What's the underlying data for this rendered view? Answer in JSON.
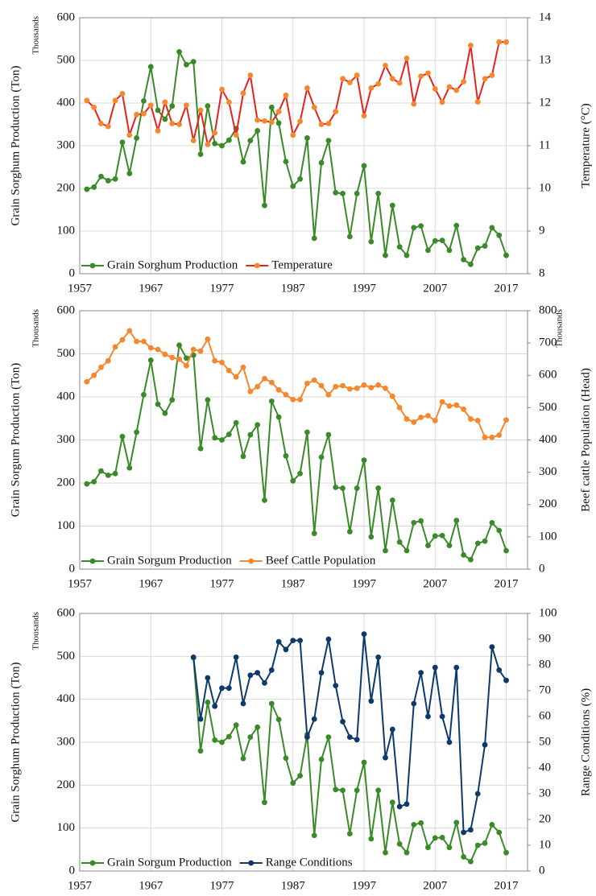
{
  "chart_data": [
    {
      "type": "line",
      "x": [
        1958,
        1959,
        1960,
        1961,
        1962,
        1963,
        1964,
        1965,
        1966,
        1967,
        1968,
        1969,
        1970,
        1971,
        1972,
        1973,
        1974,
        1975,
        1976,
        1977,
        1978,
        1979,
        1980,
        1981,
        1982,
        1983,
        1984,
        1985,
        1986,
        1987,
        1988,
        1989,
        1990,
        1991,
        1992,
        1993,
        1994,
        1995,
        1996,
        1997,
        1998,
        1999,
        2000,
        2001,
        2002,
        2003,
        2004,
        2005,
        2006,
        2007,
        2008,
        2009,
        2010,
        2011,
        2012,
        2013,
        2014,
        2015,
        2016,
        2017
      ],
      "xlim": [
        1957,
        2020
      ],
      "xticks": [
        1957,
        1967,
        1977,
        1987,
        1997,
        2007,
        2017
      ],
      "ylim": [
        0,
        600
      ],
      "yticks": [
        0,
        100,
        200,
        300,
        400,
        500,
        600
      ],
      "y2lim": [
        8,
        14
      ],
      "y2ticks": [
        8,
        9,
        10,
        11,
        12,
        13,
        14
      ],
      "ylabel": "Grain Sorghum Production  (Ton)",
      "y_unit": "Thousands",
      "y2label": "Temperature  (°C)",
      "grid": true,
      "legend": "lower left",
      "series": [
        {
          "name": "Grain Sorghum Production",
          "color": "#3a8a2a",
          "marker_color": "#3a8a2a",
          "values": [
            198,
            203,
            228,
            218,
            222,
            308,
            235,
            318,
            405,
            485,
            383,
            362,
            393,
            520,
            490,
            497,
            280,
            393,
            305,
            300,
            313,
            340,
            262,
            312,
            335,
            160,
            390,
            353,
            263,
            205,
            222,
            318,
            83,
            260,
            312,
            190,
            188,
            87,
            188,
            253,
            75,
            188,
            43,
            160,
            63,
            43,
            108,
            112,
            55,
            77,
            78,
            55,
            113,
            33,
            22,
            60,
            65,
            108,
            90,
            43
          ]
        },
        {
          "name": "Temperature",
          "color": "#e8211c",
          "marker_color": "#f5872e",
          "axis": "y2",
          "values": [
            12.06,
            11.9,
            11.52,
            11.45,
            12.06,
            12.22,
            11.25,
            11.73,
            11.75,
            11.95,
            11.35,
            12.02,
            11.52,
            11.5,
            11.95,
            11.12,
            11.83,
            11.03,
            11.3,
            12.32,
            12.02,
            11.25,
            12.23,
            12.65,
            11.6,
            11.58,
            11.55,
            11.8,
            12.18,
            11.25,
            11.57,
            12.35,
            11.9,
            11.5,
            11.52,
            11.8,
            12.57,
            12.48,
            12.65,
            11.7,
            12.35,
            12.45,
            12.88,
            12.57,
            12.47,
            13.05,
            11.98,
            12.63,
            12.7,
            12.33,
            12.02,
            12.38,
            12.3,
            12.5,
            13.35,
            12.03,
            12.57,
            12.65,
            13.43,
            13.43
          ]
        }
      ]
    },
    {
      "type": "line",
      "x": [
        1958,
        1959,
        1960,
        1961,
        1962,
        1963,
        1964,
        1965,
        1966,
        1967,
        1968,
        1969,
        1970,
        1971,
        1972,
        1973,
        1974,
        1975,
        1976,
        1977,
        1978,
        1979,
        1980,
        1981,
        1982,
        1983,
        1984,
        1985,
        1986,
        1987,
        1988,
        1989,
        1990,
        1991,
        1992,
        1993,
        1994,
        1995,
        1996,
        1997,
        1998,
        1999,
        2000,
        2001,
        2002,
        2003,
        2004,
        2005,
        2006,
        2007,
        2008,
        2009,
        2010,
        2011,
        2012,
        2013,
        2014,
        2015,
        2016,
        2017
      ],
      "xlim": [
        1957,
        2020
      ],
      "xticks": [
        1957,
        1967,
        1977,
        1987,
        1997,
        2007,
        2017
      ],
      "ylim": [
        0,
        600
      ],
      "yticks": [
        0,
        100,
        200,
        300,
        400,
        500,
        600
      ],
      "y2lim": [
        0,
        800
      ],
      "y2ticks": [
        0,
        100,
        200,
        300,
        400,
        500,
        600,
        700,
        800
      ],
      "ylabel": "Grain Sorgum Production  (Ton)",
      "y_unit": "Thousands",
      "y2label": "Beef cattle Population  (Head)",
      "y2_unit": "Thousands",
      "grid": true,
      "legend": "lower left",
      "series": [
        {
          "name": "Grain Sorgum Production",
          "color": "#3a8a2a",
          "marker_color": "#3a8a2a",
          "values": [
            198,
            203,
            228,
            218,
            222,
            308,
            235,
            318,
            405,
            485,
            383,
            362,
            393,
            520,
            490,
            497,
            280,
            393,
            305,
            300,
            313,
            340,
            262,
            312,
            335,
            160,
            390,
            353,
            263,
            205,
            222,
            318,
            83,
            260,
            312,
            190,
            188,
            87,
            188,
            253,
            75,
            188,
            43,
            160,
            63,
            43,
            108,
            112,
            55,
            77,
            78,
            55,
            113,
            33,
            22,
            60,
            65,
            108,
            90,
            43
          ]
        },
        {
          "name": "Beef Cattle Population",
          "color": "#f5872e",
          "marker_color": "#f5872e",
          "axis": "y2",
          "values": [
            580,
            600,
            625,
            645,
            688,
            710,
            738,
            705,
            705,
            685,
            680,
            665,
            655,
            650,
            630,
            680,
            675,
            712,
            645,
            640,
            615,
            595,
            625,
            550,
            565,
            590,
            578,
            555,
            540,
            525,
            525,
            575,
            585,
            568,
            540,
            565,
            568,
            558,
            560,
            570,
            562,
            570,
            560,
            535,
            500,
            465,
            455,
            470,
            475,
            460,
            518,
            505,
            508,
            495,
            465,
            460,
            408,
            408,
            415,
            462
          ]
        }
      ]
    },
    {
      "type": "line",
      "x": [
        1958,
        1959,
        1960,
        1961,
        1962,
        1963,
        1964,
        1965,
        1966,
        1967,
        1968,
        1969,
        1970,
        1971,
        1972,
        1973,
        1974,
        1975,
        1976,
        1977,
        1978,
        1979,
        1980,
        1981,
        1982,
        1983,
        1984,
        1985,
        1986,
        1987,
        1988,
        1989,
        1990,
        1991,
        1992,
        1993,
        1994,
        1995,
        1996,
        1997,
        1998,
        1999,
        2000,
        2001,
        2002,
        2003,
        2004,
        2005,
        2006,
        2007,
        2008,
        2009,
        2010,
        2011,
        2012,
        2013,
        2014,
        2015,
        2016,
        2017
      ],
      "xlim": [
        1957,
        2020
      ],
      "xticks": [
        1957,
        1967,
        1977,
        1987,
        1997,
        2007,
        2017
      ],
      "ylim": [
        0,
        600
      ],
      "yticks": [
        0,
        100,
        200,
        300,
        400,
        500,
        600
      ],
      "y2lim": [
        0,
        100
      ],
      "y2ticks": [
        0,
        10,
        20,
        30,
        40,
        50,
        60,
        70,
        80,
        90,
        100
      ],
      "ylabel": "Grain Sorghum Production  (Ton)",
      "y_unit": "Thousands",
      "y2label": "Range Conditions  (%)",
      "grid": true,
      "legend": "lower left",
      "series": [
        {
          "name": "Grain Sorgum Production",
          "color": "#3a8a2a",
          "marker_color": "#3a8a2a",
          "values": [
            null,
            null,
            null,
            null,
            null,
            null,
            null,
            null,
            null,
            null,
            null,
            null,
            null,
            null,
            null,
            497,
            280,
            393,
            305,
            300,
            313,
            340,
            262,
            312,
            335,
            160,
            390,
            353,
            263,
            205,
            222,
            318,
            83,
            260,
            312,
            190,
            188,
            87,
            188,
            253,
            75,
            188,
            43,
            160,
            63,
            43,
            108,
            112,
            55,
            77,
            78,
            55,
            113,
            33,
            22,
            60,
            65,
            108,
            90,
            43
          ]
        },
        {
          "name": "Range Conditions",
          "color": "#0d3a6b",
          "marker_color": "#0d3a6b",
          "axis": "y2",
          "values": [
            null,
            null,
            null,
            null,
            null,
            null,
            null,
            null,
            null,
            null,
            null,
            null,
            null,
            null,
            null,
            83,
            59,
            75,
            64,
            71,
            71,
            83,
            65,
            76,
            77,
            73,
            78,
            89,
            86,
            89.5,
            89.5,
            52,
            59,
            77,
            90,
            72,
            58,
            52,
            51,
            92,
            66,
            83,
            44,
            55,
            25,
            26,
            65,
            77,
            60,
            79,
            60,
            50,
            79,
            15,
            16,
            30,
            49,
            87,
            78,
            74
          ]
        }
      ]
    }
  ]
}
